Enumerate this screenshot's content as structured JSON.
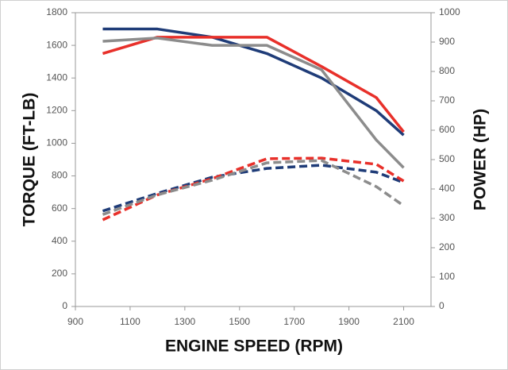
{
  "chart_data": {
    "type": "line",
    "x_label": "ENGINE SPEED (RPM)",
    "y_label": "TORQUE (FT-LB)",
    "y2_label": "POWER (HP)",
    "x": [
      1000,
      1200,
      1400,
      1600,
      1800,
      2000,
      2100
    ],
    "xlim": [
      900,
      2200
    ],
    "xticks": [
      900,
      1100,
      1300,
      1500,
      1700,
      1900,
      2100
    ],
    "ylim": [
      0,
      1800
    ],
    "yticks": [
      0,
      200,
      400,
      600,
      800,
      1000,
      1200,
      1400,
      1600,
      1800
    ],
    "y2lim": [
      0,
      1000
    ],
    "y2ticks": [
      0,
      100,
      200,
      300,
      400,
      500,
      600,
      700,
      800,
      900,
      1000
    ],
    "grid": false,
    "series": [
      {
        "color": "#1f3c78",
        "style": "solid",
        "values": [
          1700,
          1700,
          1650,
          1550,
          1400,
          1200,
          1050
        ]
      },
      {
        "color": "#e8302a",
        "style": "solid",
        "values": [
          1550,
          1650,
          1650,
          1650,
          1470,
          1280,
          1070
        ]
      },
      {
        "color": "#8c8c8c",
        "style": "solid",
        "values": [
          1625,
          1645,
          1600,
          1600,
          1450,
          1020,
          850
        ]
      },
      {
        "color": "#1f3c78",
        "style": "dashed",
        "axis": "y2",
        "values": [
          325,
          385,
          440,
          470,
          481,
          457,
          422
        ]
      },
      {
        "color": "#e8302a",
        "style": "dashed",
        "axis": "y2",
        "values": [
          295,
          380,
          435,
          503,
          505,
          484,
          427
        ]
      },
      {
        "color": "#8c8c8c",
        "style": "dashed",
        "axis": "y2",
        "values": [
          313,
          380,
          430,
          489,
          497,
          408,
          343
        ]
      }
    ]
  }
}
